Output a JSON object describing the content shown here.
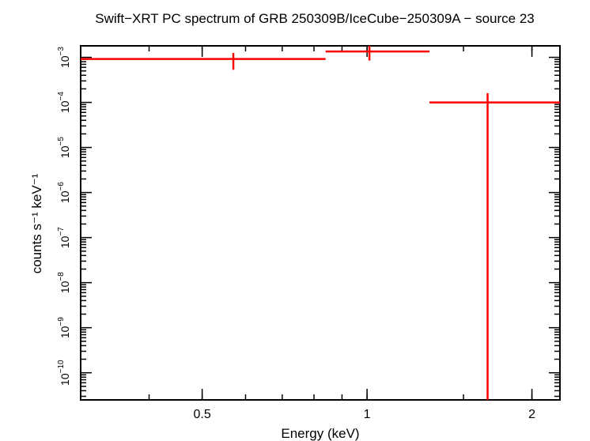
{
  "chart_data": {
    "type": "scatter",
    "title": "Swift−XRT PC spectrum of GRB 250309B/IceCube−250309A − source 23",
    "xlabel": "Energy (keV)",
    "ylabel": "counts s⁻¹ keV⁻¹",
    "x_scale": "log",
    "y_scale": "log",
    "xlim": [
      0.3,
      2.25
    ],
    "ylim": [
      2.5e-11,
      0.0018
    ],
    "x_ticks": [
      {
        "value": 0.5,
        "label": "0.5"
      },
      {
        "value": 1,
        "label": "1"
      },
      {
        "value": 2,
        "label": "2"
      }
    ],
    "y_ticks": [
      {
        "value": 1e-10,
        "mant": "10",
        "exp": "−10"
      },
      {
        "value": 1e-09,
        "mant": "10",
        "exp": "−9"
      },
      {
        "value": 1e-08,
        "mant": "10",
        "exp": "−8"
      },
      {
        "value": 1e-07,
        "mant": "10",
        "exp": "−7"
      },
      {
        "value": 1e-06,
        "mant": "10",
        "exp": "−6"
      },
      {
        "value": 1e-05,
        "mant": "10",
        "exp": "−5"
      },
      {
        "value": 0.0001,
        "mant": "10",
        "exp": "−4"
      },
      {
        "value": 0.001,
        "mant": "10",
        "exp": "−3"
      }
    ],
    "series": [
      {
        "color": "#ff0000",
        "points": [
          {
            "x": 0.57,
            "xlo": 0.3,
            "xhi": 0.84,
            "y": 0.00092,
            "ylo": 0.00053,
            "yhi": 0.00125
          },
          {
            "x": 1.01,
            "xlo": 0.84,
            "xhi": 1.3,
            "y": 0.00135,
            "ylo": 0.00085,
            "yhi": 0.00183
          },
          {
            "x": 1.66,
            "xlo": 1.3,
            "xhi": 2.25,
            "y": 0.0001,
            "ylo": 2.5e-11,
            "yhi": 0.00016
          }
        ]
      }
    ]
  }
}
